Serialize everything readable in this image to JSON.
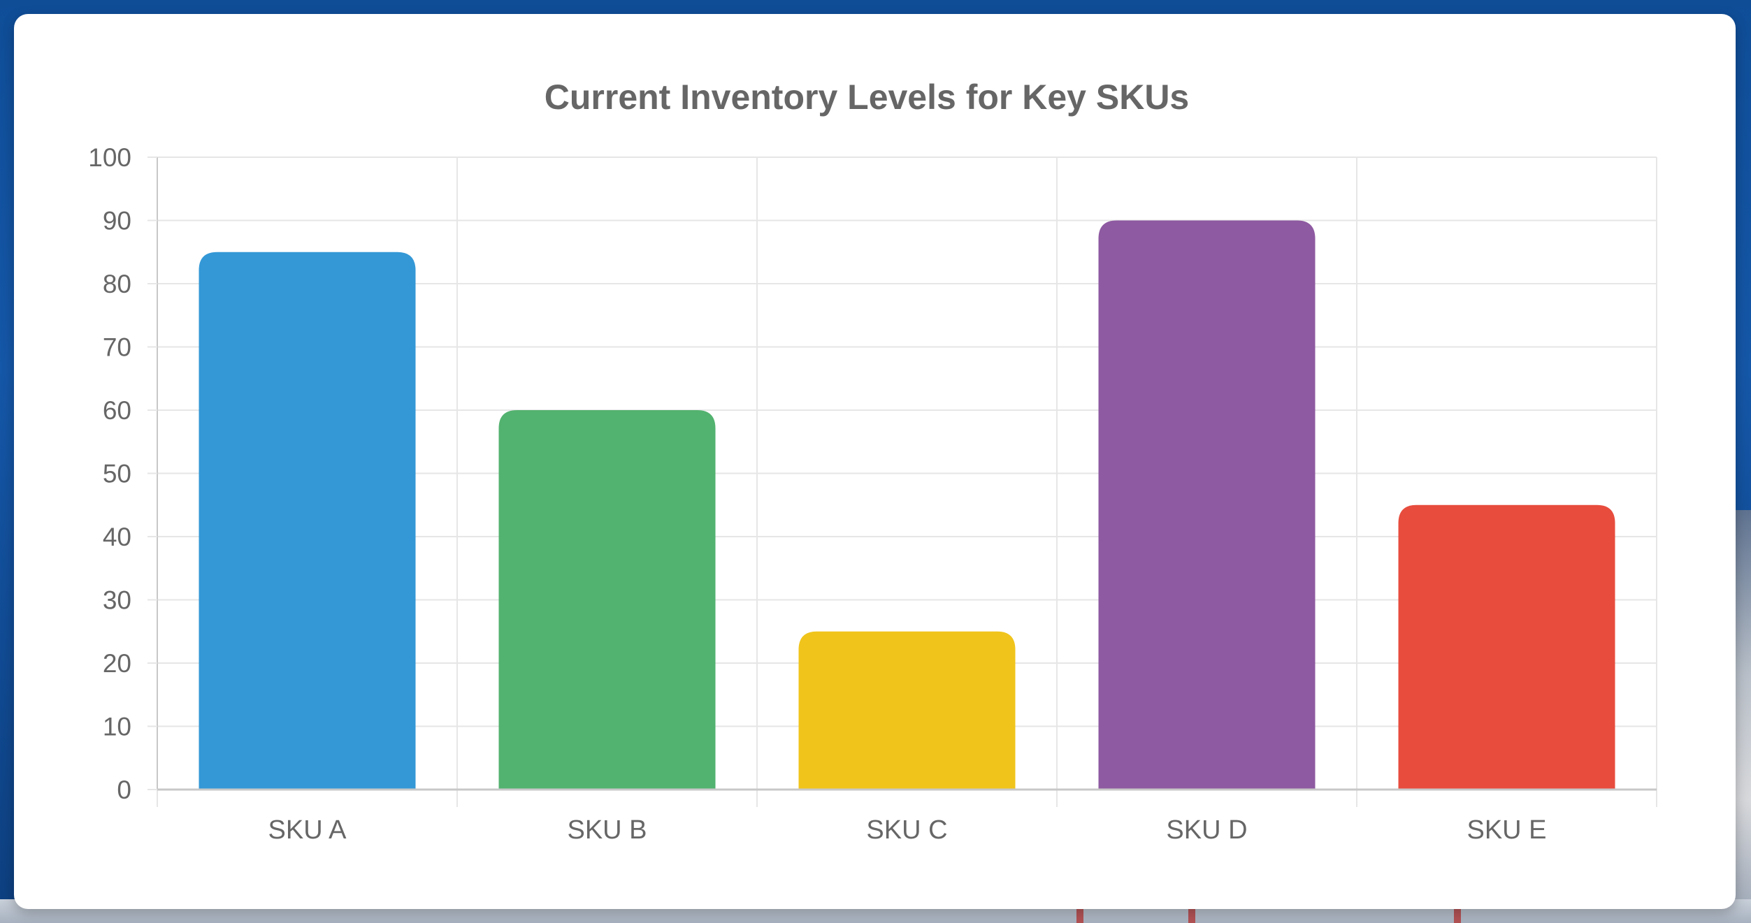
{
  "chart_data": {
    "type": "bar",
    "title": "Current Inventory Levels for Key SKUs",
    "categories": [
      "SKU A",
      "SKU B",
      "SKU C",
      "SKU D",
      "SKU E"
    ],
    "values": [
      85,
      60,
      25,
      90,
      45
    ],
    "colors": [
      "#3498d6",
      "#52b26f",
      "#f0c41b",
      "#8e5aa1",
      "#e74c3d"
    ],
    "ylim": [
      0,
      100
    ],
    "yticks": [
      "0",
      "10",
      "20",
      "30",
      "40",
      "50",
      "60",
      "70",
      "80",
      "90",
      "100"
    ],
    "xlabel": "",
    "ylabel": "",
    "grid": true,
    "legend": "none"
  },
  "style": {
    "grid_color": "#e6e6e6",
    "axis_color": "#c8c8c8",
    "text_color": "#666666",
    "title_color": "#666666"
  }
}
